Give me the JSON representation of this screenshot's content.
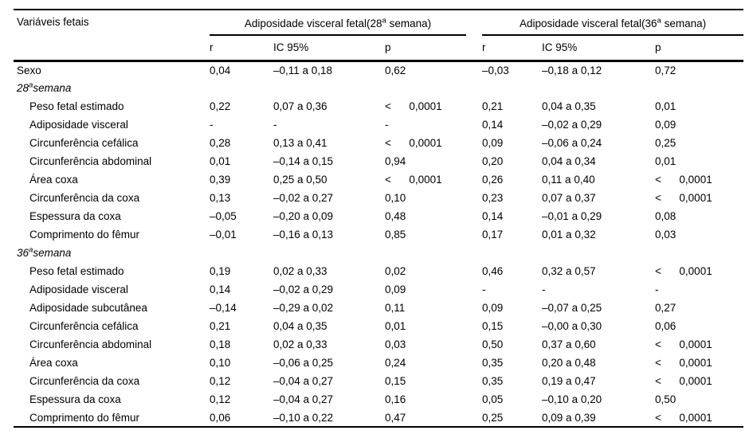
{
  "table": {
    "label_header": "Variáveis fetais",
    "groups": [
      {
        "pre": "Adiposidade visceral fetal(28",
        "sup": "a",
        "post": " semana)"
      },
      {
        "pre": "Adiposidade visceral fetal(36",
        "sup": "a",
        "post": " semana)"
      }
    ],
    "subheaders": [
      "r",
      "IC 95%",
      "p",
      "r",
      "IC 95%",
      "p"
    ],
    "rows": [
      {
        "type": "plain",
        "label": "Sexo",
        "cells": [
          "0,04",
          "–0,11 a 0,18",
          "0,62",
          "–0,03",
          "–0,18 a 0,12",
          "0,72"
        ]
      },
      {
        "type": "section",
        "label_pre": "28",
        "label_sup": "a",
        "label_post": "semana",
        "cells": [
          "",
          "",
          "",
          "",
          "",
          ""
        ]
      },
      {
        "type": "indent",
        "label": "Peso fetal estimado",
        "cells": [
          "0,22",
          "0,07 a 0,36",
          "<      0,0001",
          "0,21",
          "0,04 a 0,35",
          "0,01"
        ]
      },
      {
        "type": "indent",
        "label": "Adiposidade visceral",
        "cells": [
          "-",
          "-",
          "-",
          "0,14",
          "–0,02 a 0,29",
          "0,09"
        ]
      },
      {
        "type": "indent",
        "label": "Circunferência cefálica",
        "cells": [
          "0,28",
          "0,13 a 0,41",
          "<      0,0001",
          "0,09",
          "–0,06 a 0,24",
          "0,25"
        ]
      },
      {
        "type": "indent",
        "label": "Circunferência abdominal",
        "cells": [
          "0,01",
          "–0,14 a 0,15",
          "0,94",
          "0,20",
          "0,04 a 0,34",
          "0,01"
        ]
      },
      {
        "type": "indent",
        "label": "Área coxa",
        "cells": [
          "0,39",
          "0,25 a 0,50",
          "<      0,0001",
          "0,26",
          "0,11 a 0,40",
          "<      0,0001"
        ]
      },
      {
        "type": "indent",
        "label": "Circunferência da coxa",
        "cells": [
          "0,13",
          "–0,02 a 0,27",
          "0,10",
          "0,23",
          "0,07 a 0,37",
          "<      0,0001"
        ]
      },
      {
        "type": "indent",
        "label": "Espessura da coxa",
        "cells": [
          "–0,05",
          "–0,20 a 0,09",
          "0,48",
          "0,14",
          "–0,01 a 0,29",
          "0,08"
        ]
      },
      {
        "type": "indent",
        "label": "Comprimento do fêmur",
        "cells": [
          "–0,01",
          "–0,16 a 0,13",
          "0,85",
          "0,17",
          "0,01 a 0,32",
          "0,03"
        ]
      },
      {
        "type": "section",
        "label_pre": "36",
        "label_sup": "a",
        "label_post": "semana",
        "cells": [
          "",
          "",
          "",
          "",
          "",
          ""
        ]
      },
      {
        "type": "indent",
        "label": "Peso fetal estimado",
        "cells": [
          "0,19",
          "0,02 a 0,33",
          "0,02",
          "0,46",
          "0,32 a 0,57",
          "<      0,0001"
        ]
      },
      {
        "type": "indent",
        "label": "Adiposidade visceral",
        "cells": [
          "0,14",
          "–0,02 a 0,29",
          "0,09",
          "-",
          "-",
          "-"
        ]
      },
      {
        "type": "indent",
        "label": "Adiposidade subcutânea",
        "cells": [
          "–0,14",
          "–0,29 a 0,02",
          "0,11",
          "0,09",
          "–0,07 a 0,25",
          "0,27"
        ]
      },
      {
        "type": "indent",
        "label": "Circunferência cefálica",
        "cells": [
          "0,21",
          "0,04 a 0,35",
          "0,01",
          "0,15",
          "–0,00 a 0,30",
          "0,06"
        ]
      },
      {
        "type": "indent",
        "label": "Circunferência abdominal",
        "cells": [
          "0,18",
          "0,02 a 0,33",
          "0,03",
          "0,50",
          "0,37 a 0,60",
          "<      0,0001"
        ]
      },
      {
        "type": "indent",
        "label": "Área coxa",
        "cells": [
          "0,10",
          "–0,06 a 0,25",
          "0,24",
          "0,35",
          "0,20 a 0,48",
          "<      0,0001"
        ]
      },
      {
        "type": "indent",
        "label": "Circunferência da coxa",
        "cells": [
          "0,12",
          "–0,04 a 0,27",
          "0,15",
          "0,35",
          "0,19 a 0,47",
          "<      0,0001"
        ]
      },
      {
        "type": "indent",
        "label": "Espessura da coxa",
        "cells": [
          "0,12",
          "–0,04 a 0,27",
          "0,16",
          "0,05",
          "–0,10 a 0,20",
          "0,50"
        ]
      },
      {
        "type": "indent",
        "label": "Comprimento do fêmur",
        "cells": [
          "0,06",
          "–0,10 a 0,22",
          "0,47",
          "0,25",
          "0,09 a 0,39",
          "<      0,0001"
        ]
      }
    ]
  },
  "colors": {
    "text": "#000000",
    "background": "#ffffff",
    "rule": "#000000"
  }
}
